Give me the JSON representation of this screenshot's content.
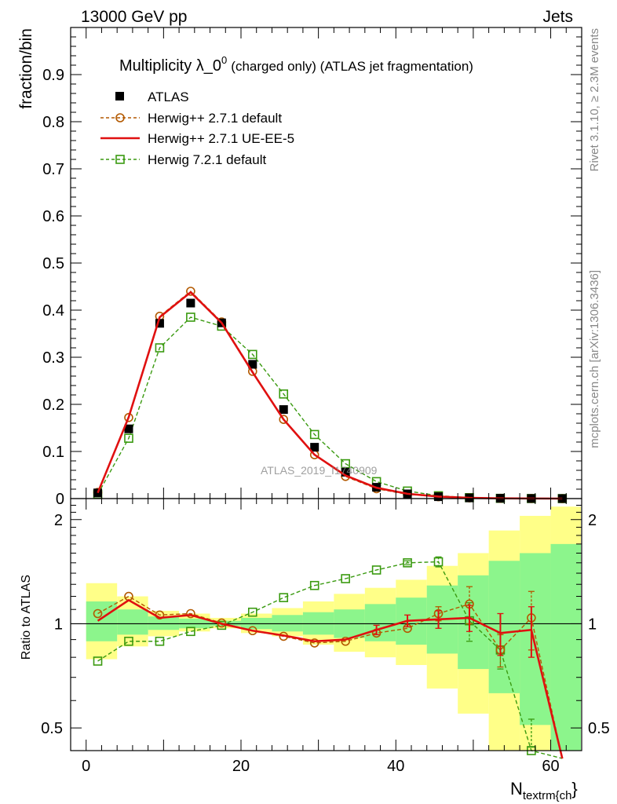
{
  "header": {
    "left": "13000 GeV pp",
    "right": "Jets"
  },
  "side": {
    "top": "Rivet 3.1.10, ≥ 2.3M events",
    "bottom": "mcplots.cern.ch [arXiv:1306.3436]"
  },
  "watermark": "ATLAS_2019_I1740909",
  "chart_data": {
    "type": "line",
    "title_main": "Multiplicity λ_0",
    "title_sup": "0",
    "title_sub": "(charged only) (ATLAS jet fragmentation)",
    "xlabel_main": "N",
    "xlabel_sub": "textrm{ch",
    "xlabel_tail": "}",
    "ylabel_top": "fraction/bin",
    "ylabel_bottom": "Ratio to ATLAS",
    "x": [
      1.5,
      5.5,
      9.5,
      13.5,
      17.5,
      21.5,
      25.5,
      29.5,
      33.5,
      37.5,
      41.5,
      45.5,
      49.5,
      53.5,
      57.5,
      61.5
    ],
    "xlim": [
      -2,
      64
    ],
    "top_ylim": [
      0,
      1.0
    ],
    "top_yticks": [
      "0",
      "0.1",
      "0.2",
      "0.3",
      "0.4",
      "0.5",
      "0.6",
      "0.7",
      "0.8",
      "0.9"
    ],
    "top_ytick_values": [
      0,
      0.1,
      0.2,
      0.3,
      0.4,
      0.5,
      0.6,
      0.7,
      0.8,
      0.9
    ],
    "xticks": [
      "0",
      "20",
      "40",
      "60"
    ],
    "xtick_values": [
      0,
      20,
      40,
      60
    ],
    "ratio_ylim": [
      0.43,
      2.3
    ],
    "ratio_log": true,
    "ratio_yticks": [
      "0.5",
      "1",
      "2"
    ],
    "ratio_ytick_values": [
      0.5,
      1,
      2
    ],
    "series": [
      {
        "name": "ATLAS",
        "color": "#000000",
        "marker": "square-filled",
        "values": [
          0.012,
          0.148,
          0.372,
          0.415,
          0.373,
          0.285,
          0.189,
          0.109,
          0.056,
          0.024,
          0.01,
          0.004,
          0.0015,
          0.0006,
          0.0002,
          5e-05
        ]
      },
      {
        "name": "Herwig++ 2.7.1 default",
        "color": "#b35900",
        "marker": "circle-open",
        "dash": true,
        "values": [
          0.013,
          0.172,
          0.387,
          0.44,
          0.375,
          0.27,
          0.168,
          0.093,
          0.047,
          0.021,
          0.009,
          0.004,
          0.0016,
          0.0005,
          0.0002,
          0.0
        ]
      },
      {
        "name": "Herwig++ 2.7.1 UE-EE-5",
        "color": "#e01010",
        "marker": "none",
        "dash": false,
        "values": [
          0.0122,
          0.173,
          0.385,
          0.438,
          0.373,
          0.268,
          0.168,
          0.093,
          0.049,
          0.023,
          0.0102,
          0.0042,
          0.0015,
          0.0005,
          0.0002,
          0.0
        ]
      },
      {
        "name": "Herwig 7.2.1 default",
        "color": "#3a9a10",
        "marker": "square-open",
        "dash": true,
        "values": [
          0.009,
          0.128,
          0.32,
          0.385,
          0.366,
          0.306,
          0.222,
          0.136,
          0.074,
          0.036,
          0.016,
          0.006,
          0.002,
          0.0005,
          0.0001,
          0.0
        ]
      }
    ],
    "ratio": {
      "band_edges": [
        0,
        4,
        8,
        12,
        16,
        20,
        24,
        28,
        32,
        36,
        40,
        44,
        48,
        52,
        56,
        60,
        64
      ],
      "yellow_lo": [
        0.79,
        0.86,
        0.92,
        0.95,
        0.97,
        0.94,
        0.92,
        0.87,
        0.83,
        0.8,
        0.76,
        0.65,
        0.55,
        0.43,
        0.43,
        0.43
      ],
      "yellow_hi": [
        1.31,
        1.2,
        1.09,
        1.07,
        1.04,
        1.07,
        1.11,
        1.16,
        1.22,
        1.27,
        1.34,
        1.47,
        1.6,
        1.86,
        2.05,
        2.18
      ],
      "green_lo": [
        0.89,
        0.93,
        0.96,
        0.97,
        0.985,
        0.965,
        0.95,
        0.93,
        0.91,
        0.89,
        0.87,
        0.82,
        0.74,
        0.63,
        0.51,
        0.43
      ],
      "green_hi": [
        1.16,
        1.1,
        1.05,
        1.035,
        1.02,
        1.04,
        1.06,
        1.08,
        1.1,
        1.14,
        1.19,
        1.29,
        1.38,
        1.52,
        1.6,
        1.7
      ],
      "atlas_line": 1,
      "herwig_default": [
        1.07,
        1.2,
        1.06,
        1.07,
        1.005,
        0.955,
        0.92,
        0.88,
        0.89,
        0.94,
        0.97,
        1.07,
        1.14,
        0.84,
        1.04,
        0.0
      ],
      "herwig_default_err": [
        0,
        0,
        0,
        0,
        0,
        0,
        0,
        0,
        0,
        0,
        0,
        0.05,
        0.14,
        0.09,
        0.2,
        0
      ],
      "ue_ee5": [
        1.02,
        1.17,
        1.04,
        1.06,
        1.0,
        0.955,
        0.925,
        0.89,
        0.9,
        0.96,
        1.02,
        1.03,
        1.04,
        0.94,
        0.96,
        0.0
      ],
      "ue_ee5_err": [
        0,
        0,
        0,
        0,
        0,
        0,
        0,
        0,
        0,
        0.03,
        0.04,
        0.06,
        0.09,
        0.13,
        0.16,
        0
      ],
      "herwig7": [
        0.78,
        0.89,
        0.89,
        0.95,
        0.99,
        1.08,
        1.19,
        1.29,
        1.35,
        1.43,
        1.5,
        1.51,
        1.02,
        0.84,
        0.43,
        0.0
      ],
      "herwig7_err": [
        0,
        0,
        0,
        0,
        0,
        0,
        0,
        0,
        0,
        0,
        0.02,
        0.05,
        0.13,
        0.1,
        0.1,
        0
      ]
    }
  }
}
